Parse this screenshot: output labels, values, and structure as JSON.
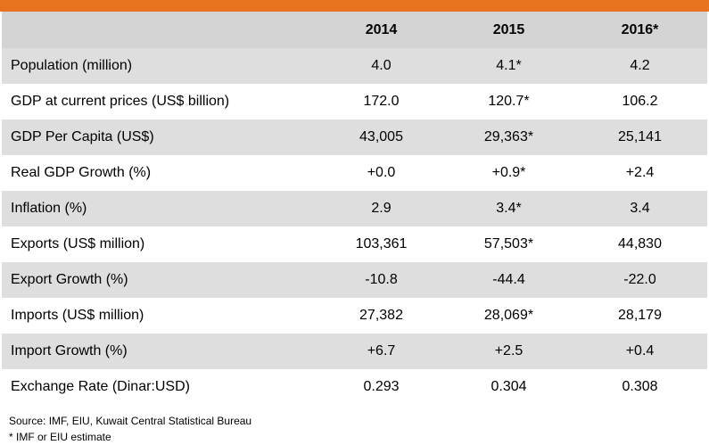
{
  "table": {
    "headers": [
      "",
      "2014",
      "2015",
      "2016*"
    ],
    "rows": [
      [
        "Population (million)",
        "4.0",
        "4.1*",
        "4.2"
      ],
      [
        "GDP at current prices (US$ billion)",
        "172.0",
        "120.7*",
        "106.2"
      ],
      [
        "GDP Per Capita (US$)",
        "43,005",
        "29,363*",
        "25,141"
      ],
      [
        "Real GDP Growth (%)",
        "+0.0",
        "+0.9*",
        "+2.4"
      ],
      [
        "Inflation (%)",
        "2.9",
        "3.4*",
        "3.4"
      ],
      [
        "Exports (US$ million)",
        "103,361",
        "57,503*",
        "44,830"
      ],
      [
        "Export Growth (%)",
        "-10.8",
        "-44.4",
        "-22.0"
      ],
      [
        "Imports (US$ million)",
        "27,382",
        "28,069*",
        "28,179"
      ],
      [
        "Import Growth (%)",
        "+6.7",
        "+2.5",
        "+0.4"
      ],
      [
        "Exchange Rate (Dinar:USD)",
        "0.293",
        "0.304",
        "0.308"
      ]
    ]
  },
  "footnotes": {
    "source": "Source: IMF, EIU, Kuwait Central Statistical Bureau",
    "note": "* IMF or EIU estimate"
  },
  "colors": {
    "accent_bar": "#e8731f",
    "header_bg": "#d4d4d4",
    "shaded_row_bg": "#dedede"
  }
}
